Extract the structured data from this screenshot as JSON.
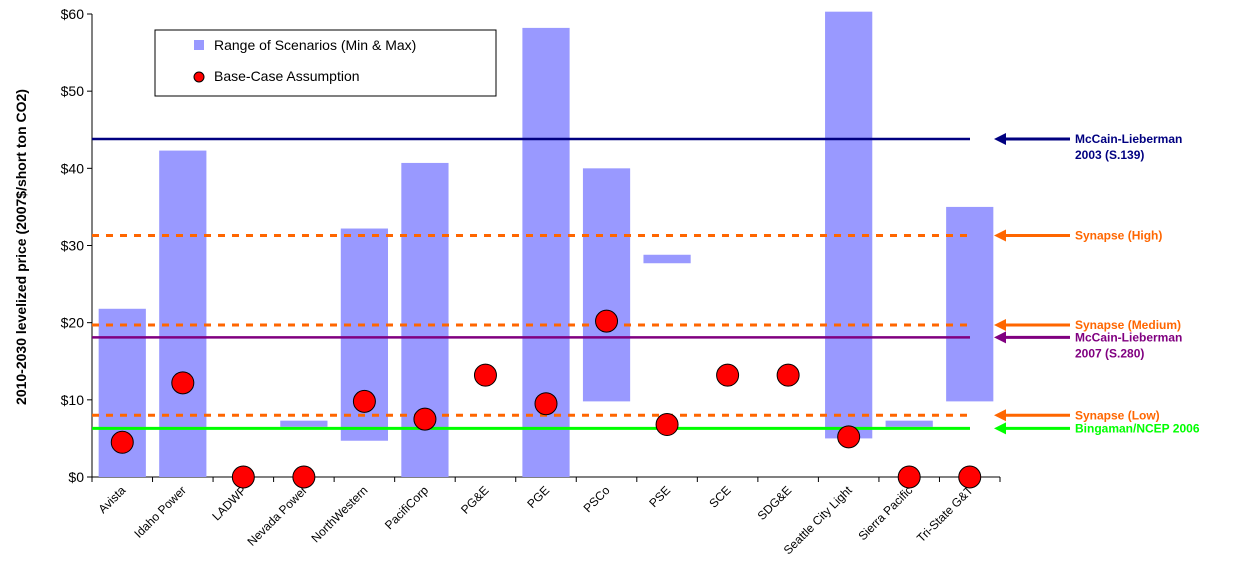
{
  "chart_data": {
    "type": "bar",
    "title": "",
    "xlabel": "",
    "ylabel": "2010-2030 levelized price (2007$/short ton CO2)",
    "ylim": [
      0,
      60
    ],
    "yticks": [
      0,
      10,
      20,
      30,
      40,
      50,
      60
    ],
    "ytick_labels": [
      "$0",
      "$10",
      "$20",
      "$30",
      "$40",
      "$50",
      "$60"
    ],
    "categories": [
      "Avista",
      "Idaho Power",
      "LADWP",
      "Nevada Power",
      "NorthWestern",
      "PacifiCorp",
      "PG&E",
      "PGE",
      "PSCo",
      "PSE",
      "SCE",
      "SDG&E",
      "Seattle City Light",
      "Sierra Pacific",
      "Tri-State G&T"
    ],
    "series": [
      {
        "name": "Range of Scenarios (Min & Max)",
        "kind": "range-bar",
        "color": "#9999FF",
        "min": [
          0,
          0,
          null,
          6.5,
          4.7,
          0,
          null,
          0,
          9.8,
          27.7,
          null,
          null,
          5.0,
          6.5,
          9.8
        ],
        "max": [
          21.8,
          42.3,
          null,
          7.3,
          32.2,
          40.7,
          null,
          58.2,
          40.0,
          28.8,
          null,
          null,
          60.3,
          7.3,
          35.0
        ]
      },
      {
        "name": "Base-Case Assumption",
        "kind": "point",
        "color": "#FF0000",
        "values": [
          4.5,
          12.2,
          0,
          0,
          9.8,
          7.5,
          13.2,
          9.5,
          20.2,
          6.8,
          13.2,
          13.2,
          5.2,
          0,
          0
        ]
      }
    ],
    "reference_lines": [
      {
        "label_lines": [
          "McCain-Lieberman",
          "2003 (S.139)"
        ],
        "value": 43.8,
        "color": "#000080",
        "style": "solid"
      },
      {
        "label_lines": [
          "Synapse (High)"
        ],
        "value": 31.3,
        "color": "#FF6600",
        "style": "dashed"
      },
      {
        "label_lines": [
          "Synapse (Medium)"
        ],
        "value": 19.7,
        "color": "#FF6600",
        "style": "dashed"
      },
      {
        "label_lines": [
          "McCain-Lieberman",
          "2007 (S.280)"
        ],
        "value": 18.1,
        "color": "#800080",
        "style": "solid"
      },
      {
        "label_lines": [
          "Synapse (Low)"
        ],
        "value": 8.0,
        "color": "#FF6600",
        "style": "dashed"
      },
      {
        "label_lines": [
          "Bingaman/NCEP 2006"
        ],
        "value": 6.3,
        "color": "#00FF00",
        "style": "solid"
      }
    ],
    "legend_position": "top-left",
    "grid": false
  }
}
